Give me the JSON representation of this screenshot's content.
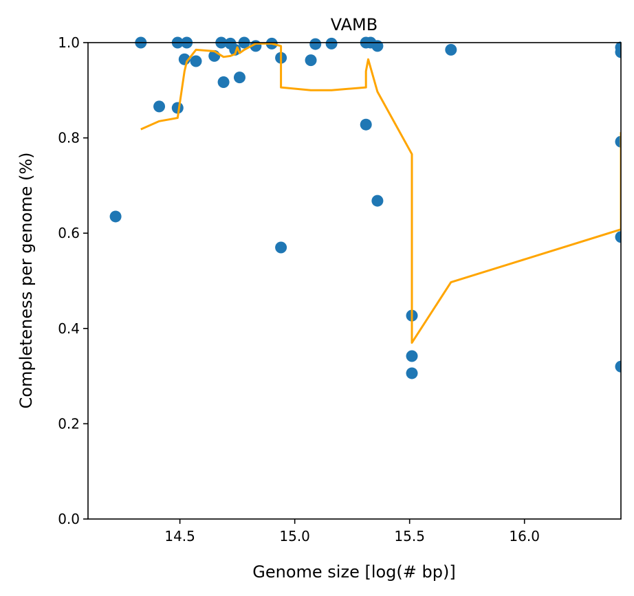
{
  "chart_data": {
    "type": "scatter",
    "title": "VAMB",
    "xlabel": "Genome size [log(# bp)]",
    "ylabel": "Completeness per genome (%)",
    "xlim": [
      14.1,
      16.42
    ],
    "ylim": [
      0.0,
      1.0
    ],
    "xticks": [
      "14.5",
      "15.0",
      "15.5",
      "16.0"
    ],
    "xtick_values": [
      14.5,
      15.0,
      15.5,
      16.0
    ],
    "yticks": [
      "0.0",
      "0.2",
      "0.4",
      "0.6",
      "0.8",
      "1.0"
    ],
    "ytick_values": [
      0.0,
      0.2,
      0.4,
      0.6,
      0.8,
      1.0
    ],
    "grid": false,
    "series": [
      {
        "kind": "scatter",
        "color": "#1f77b4",
        "points": [
          [
            14.22,
            0.635
          ],
          [
            14.33,
            1.0
          ],
          [
            14.41,
            0.866
          ],
          [
            14.49,
            0.863
          ],
          [
            14.49,
            1.0
          ],
          [
            14.52,
            0.965
          ],
          [
            14.53,
            1.0
          ],
          [
            14.57,
            0.961
          ],
          [
            14.65,
            0.972
          ],
          [
            14.68,
            1.0
          ],
          [
            14.69,
            0.917
          ],
          [
            14.72,
            0.998
          ],
          [
            14.74,
            0.985
          ],
          [
            14.76,
            0.927
          ],
          [
            14.78,
            1.0
          ],
          [
            14.83,
            0.993
          ],
          [
            14.9,
            0.998
          ],
          [
            14.94,
            0.968
          ],
          [
            14.94,
            0.57
          ],
          [
            15.07,
            0.963
          ],
          [
            15.09,
            0.997
          ],
          [
            15.16,
            0.998
          ],
          [
            15.31,
            1.0
          ],
          [
            15.31,
            0.828
          ],
          [
            15.33,
            1.0
          ],
          [
            15.36,
            0.993
          ],
          [
            15.36,
            0.668
          ],
          [
            15.51,
            0.427
          ],
          [
            15.51,
            0.342
          ],
          [
            15.51,
            0.306
          ],
          [
            15.68,
            0.985
          ],
          [
            16.42,
            0.99
          ],
          [
            16.42,
            0.98
          ],
          [
            16.42,
            0.792
          ],
          [
            16.42,
            0.592
          ],
          [
            16.42,
            0.32
          ]
        ]
      },
      {
        "kind": "line",
        "color": "#ffa500",
        "points": [
          [
            14.33,
            0.818
          ],
          [
            14.41,
            0.835
          ],
          [
            14.49,
            0.842
          ],
          [
            14.52,
            0.94
          ],
          [
            14.53,
            0.96
          ],
          [
            14.57,
            0.985
          ],
          [
            14.65,
            0.982
          ],
          [
            14.69,
            0.97
          ],
          [
            14.72,
            0.972
          ],
          [
            14.74,
            0.976
          ],
          [
            14.75,
            0.99
          ],
          [
            14.76,
            0.978
          ],
          [
            14.78,
            0.985
          ],
          [
            14.83,
            0.998
          ],
          [
            14.9,
            0.998
          ],
          [
            14.94,
            0.993
          ],
          [
            14.94,
            0.906
          ],
          [
            15.07,
            0.9
          ],
          [
            15.16,
            0.9
          ],
          [
            15.31,
            0.906
          ],
          [
            15.31,
            0.94
          ],
          [
            15.32,
            0.965
          ],
          [
            15.36,
            0.897
          ],
          [
            15.51,
            0.766
          ],
          [
            15.51,
            0.37
          ],
          [
            15.68,
            0.497
          ],
          [
            16.42,
            0.608
          ],
          [
            16.42,
            0.812
          ]
        ]
      }
    ]
  }
}
